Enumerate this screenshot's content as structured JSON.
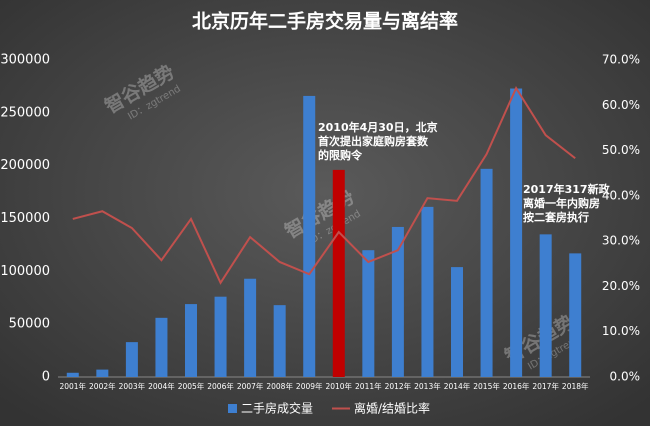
{
  "chart_data": {
    "type": "bar-line",
    "title": "北京历年二手房交易量与离结率",
    "categories": [
      "2001年",
      "2002年",
      "2003年",
      "2004年",
      "2005年",
      "2006年",
      "2007年",
      "2008年",
      "2009年",
      "2010年",
      "2011年",
      "2012年",
      "2013年",
      "2014年",
      "2015年",
      "2016年",
      "2017年",
      "2018年"
    ],
    "series": [
      {
        "name": "二手房成交量",
        "color": "#3e7fd0",
        "type": "bar",
        "colors": [
          "#3e7fd0",
          "#3e7fd0",
          "#3e7fd0",
          "#3e7fd0",
          "#3e7fd0",
          "#3e7fd0",
          "#3e7fd0",
          "#3e7fd0",
          "#3e7fd0",
          "#c00000",
          "#3e7fd0",
          "#3e7fd0",
          "#3e7fd0",
          "#3e7fd0",
          "#3e7fd0",
          "#3e7fd0",
          "#3e7fd0",
          "#3e7fd0"
        ],
        "values": [
          4000,
          7000,
          33000,
          56000,
          69000,
          76000,
          93000,
          68000,
          266000,
          196000,
          120000,
          142000,
          161000,
          104000,
          197000,
          273000,
          135000,
          117000
        ]
      },
      {
        "name": "离婚/结婚比率",
        "color": "#c0504d",
        "type": "line",
        "axis": "y2",
        "values": [
          34.9,
          36.6,
          32.9,
          25.8,
          34.9,
          20.8,
          30.9,
          25.4,
          22.7,
          32.0,
          25.4,
          28.0,
          39.5,
          38.9,
          49.2,
          63.8,
          53.4,
          48.3
        ]
      }
    ],
    "ylim": [
      0,
      300000
    ],
    "yticks": [
      0,
      50000,
      100000,
      150000,
      200000,
      250000,
      300000
    ],
    "y2lim": [
      0,
      70
    ],
    "y2ticks": [
      {
        "value": 0,
        "label": "0.0%"
      },
      {
        "value": 10,
        "label": "10.0%"
      },
      {
        "value": 20,
        "label": "20.0%"
      },
      {
        "value": 30,
        "label": "30.0%"
      },
      {
        "value": 40,
        "label": "40.0%"
      },
      {
        "value": 50,
        "label": "50.0%"
      },
      {
        "value": 60,
        "label": "60.0%"
      },
      {
        "value": 70,
        "label": "70.0%"
      }
    ],
    "legend": "bottom",
    "annotations": [
      {
        "lines": [
          "2010年4月30日，北京",
          "首次提出家庭购房套数",
          "的限购令"
        ]
      },
      {
        "lines": [
          "2017年317新政",
          "离婚一年内购房",
          "按二套房执行"
        ]
      }
    ],
    "watermarks": [
      {
        "name": "智谷趋势",
        "id": "ID：zgtrend"
      },
      {
        "name": "智谷趋势",
        "id": "ID：zgtrend"
      },
      {
        "name": "智谷趋势",
        "id": "ID：zgtrend"
      }
    ]
  }
}
